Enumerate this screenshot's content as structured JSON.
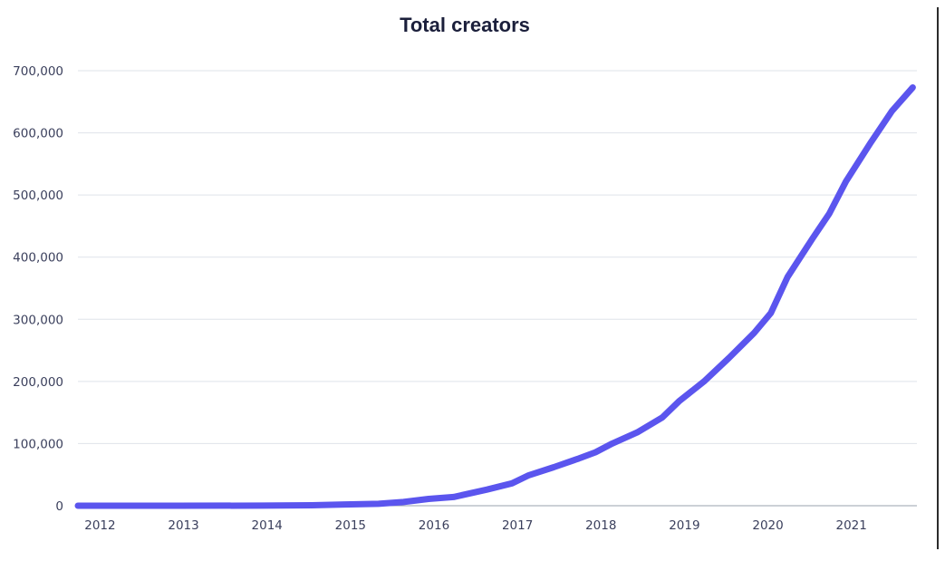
{
  "chart_data": {
    "type": "line",
    "title": "Total creators",
    "xlabel": "",
    "ylabel": "",
    "x_ticks": [
      2012,
      2013,
      2014,
      2015,
      2016,
      2017,
      2018,
      2019,
      2020,
      2021
    ],
    "x_tick_labels": [
      "2012",
      "2013",
      "2014",
      "2015",
      "2016",
      "2017",
      "2018",
      "2019",
      "2020",
      "2021"
    ],
    "xlim": [
      2011.8,
      2021.85
    ],
    "y_ticks": [
      0,
      100000,
      200000,
      300000,
      400000,
      500000,
      600000,
      700000
    ],
    "y_tick_labels": [
      "0",
      "100,000",
      "200,000",
      "300,000",
      "400,000",
      "500,000",
      "600,000",
      "700,000"
    ],
    "ylim": [
      0,
      700000
    ],
    "grid": "horizontal",
    "legend": "none",
    "series": [
      {
        "color": "#5b55ee",
        "points": [
          {
            "x": 2011.8,
            "y": 0
          },
          {
            "x": 2013.0,
            "y": 0
          },
          {
            "x": 2014.0,
            "y": 200
          },
          {
            "x": 2014.6,
            "y": 800
          },
          {
            "x": 2015.0,
            "y": 2000
          },
          {
            "x": 2015.4,
            "y": 3000
          },
          {
            "x": 2015.7,
            "y": 6000
          },
          {
            "x": 2016.0,
            "y": 11000
          },
          {
            "x": 2016.3,
            "y": 14000
          },
          {
            "x": 2016.7,
            "y": 26000
          },
          {
            "x": 2017.0,
            "y": 36000
          },
          {
            "x": 2017.2,
            "y": 49000
          },
          {
            "x": 2017.5,
            "y": 62000
          },
          {
            "x": 2017.8,
            "y": 76000
          },
          {
            "x": 2018.0,
            "y": 86000
          },
          {
            "x": 2018.2,
            "y": 100000
          },
          {
            "x": 2018.5,
            "y": 118000
          },
          {
            "x": 2018.8,
            "y": 142000
          },
          {
            "x": 2019.0,
            "y": 168000
          },
          {
            "x": 2019.3,
            "y": 200000
          },
          {
            "x": 2019.6,
            "y": 238000
          },
          {
            "x": 2019.9,
            "y": 278000
          },
          {
            "x": 2020.1,
            "y": 310000
          },
          {
            "x": 2020.3,
            "y": 368000
          },
          {
            "x": 2020.6,
            "y": 430000
          },
          {
            "x": 2020.8,
            "y": 470000
          },
          {
            "x": 2021.0,
            "y": 522000
          },
          {
            "x": 2021.3,
            "y": 585000
          },
          {
            "x": 2021.55,
            "y": 635000
          },
          {
            "x": 2021.8,
            "y": 673000
          }
        ]
      }
    ]
  }
}
